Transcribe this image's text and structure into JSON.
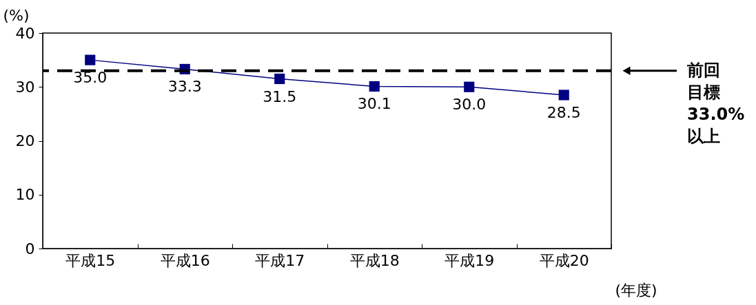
{
  "chart_data": {
    "type": "line",
    "categories": [
      "平成15",
      "平成16",
      "平成17",
      "平成18",
      "平成19",
      "平成20"
    ],
    "series": [
      {
        "color": "#000080",
        "values": [
          35.0,
          33.3,
          31.5,
          30.1,
          30.0,
          28.5
        ],
        "value_labels": [
          "35.0",
          "33.3",
          "31.5",
          "30.1",
          "30.0",
          "28.5"
        ]
      }
    ],
    "ylim": [
      0,
      40
    ],
    "yticks": [
      0,
      10,
      20,
      30,
      40
    ],
    "ylabel": "(%)",
    "xlabel": "(年度)",
    "marker": "square",
    "line_style": "solid",
    "ref_lines": [
      {
        "axis": "y",
        "value": 33,
        "label": "前回目標33.0%以上",
        "color": "#000000",
        "line_style": "dashed"
      }
    ]
  }
}
